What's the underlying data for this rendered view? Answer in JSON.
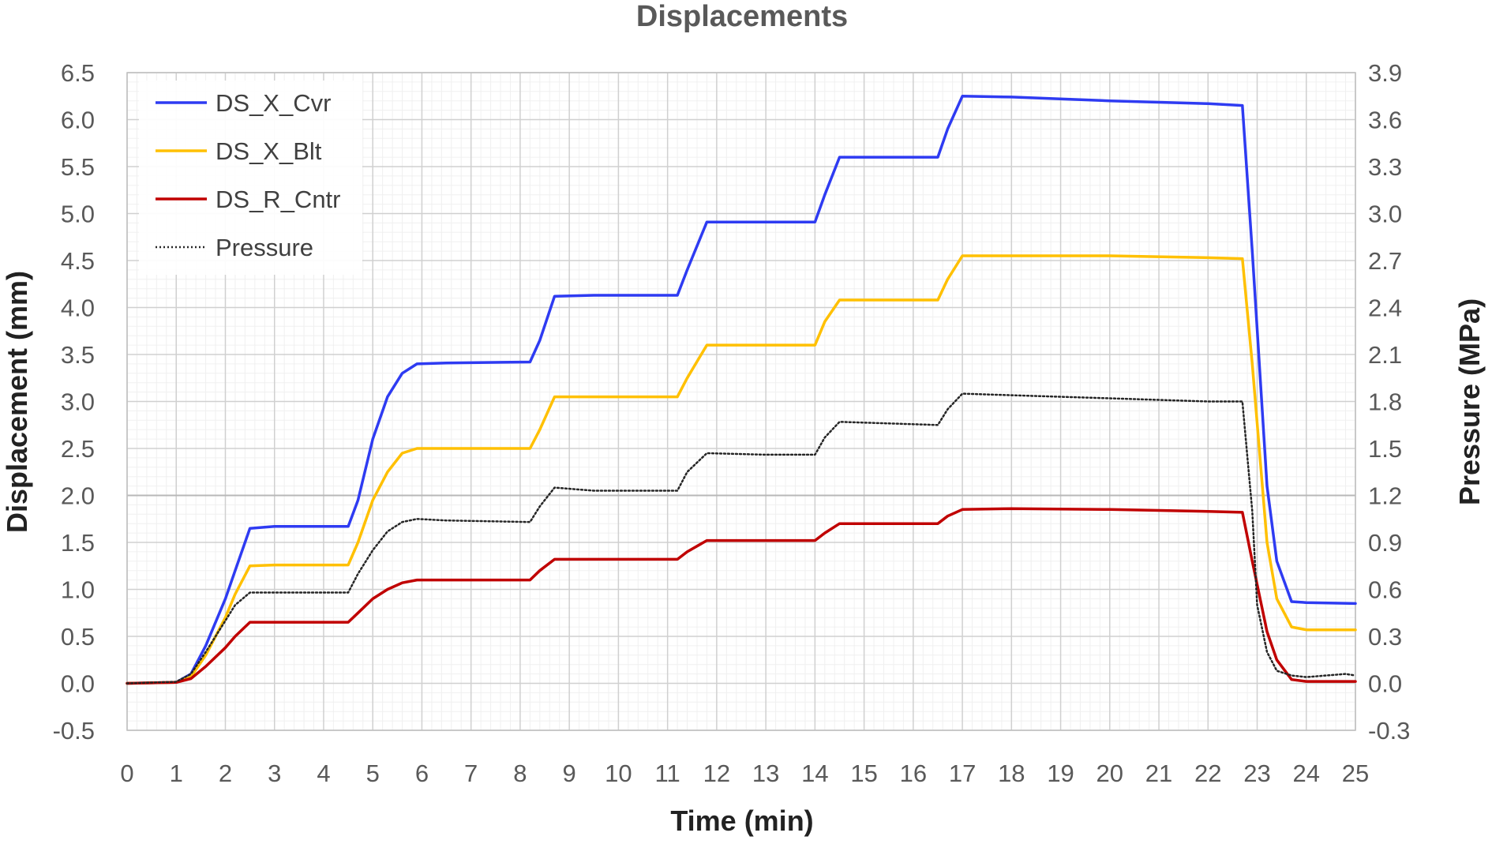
{
  "chart_data": {
    "type": "line",
    "title": "Displacements",
    "xlabel": "Time (min)",
    "ylabel": "Displacement (mm)",
    "y2label": "Pressure (MPa)",
    "xlim": [
      0,
      25
    ],
    "ylim": [
      -0.5,
      6.5
    ],
    "y2lim": [
      -0.3,
      3.9
    ],
    "x_ticks": [
      "0",
      "1",
      "2",
      "3",
      "4",
      "5",
      "6",
      "7",
      "8",
      "9",
      "10",
      "11",
      "12",
      "13",
      "14",
      "15",
      "16",
      "17",
      "18",
      "19",
      "20",
      "21",
      "22",
      "23",
      "24",
      "25"
    ],
    "y_ticks": [
      "-0.5",
      "0.0",
      "0.5",
      "1.0",
      "1.5",
      "2.0",
      "2.5",
      "3.0",
      "3.5",
      "4.0",
      "4.5",
      "5.0",
      "5.5",
      "6.0",
      "6.5"
    ],
    "y2_ticks": [
      "-0.3",
      "0.0",
      "0.3",
      "0.6",
      "0.9",
      "1.2",
      "1.5",
      "1.8",
      "2.1",
      "2.4",
      "2.7",
      "3.0",
      "3.3",
      "3.6",
      "3.9"
    ],
    "grid": true,
    "legend_position": "top-left",
    "series": [
      {
        "name": "DS_X_Cvr",
        "axis": "left",
        "color": "#2E3BF2",
        "style": "solid",
        "x": [
          0,
          1.0,
          1.3,
          1.6,
          2.0,
          2.2,
          2.5,
          3.0,
          4.5,
          4.7,
          5.0,
          5.3,
          5.6,
          5.9,
          6.5,
          8.2,
          8.4,
          8.7,
          9.5,
          11.2,
          11.4,
          11.8,
          13.0,
          14.0,
          14.2,
          14.5,
          15.5,
          16.5,
          16.7,
          17.0,
          18.0,
          20.0,
          22.0,
          22.7,
          22.9,
          23.2,
          23.4,
          23.7,
          24.0,
          25.0
        ],
        "y": [
          0,
          0.01,
          0.1,
          0.4,
          0.9,
          1.2,
          1.65,
          1.67,
          1.67,
          1.95,
          2.6,
          3.05,
          3.3,
          3.4,
          3.41,
          3.42,
          3.65,
          4.12,
          4.13,
          4.13,
          4.4,
          4.91,
          4.91,
          4.91,
          5.2,
          5.6,
          5.6,
          5.6,
          5.9,
          6.25,
          6.24,
          6.2,
          6.17,
          6.15,
          4.6,
          2.1,
          1.3,
          0.87,
          0.86,
          0.85
        ]
      },
      {
        "name": "DS_X_Blt",
        "axis": "left",
        "color": "#FFC000",
        "style": "solid",
        "x": [
          0,
          1.0,
          1.3,
          1.6,
          2.0,
          2.2,
          2.5,
          3.0,
          4.5,
          4.7,
          5.0,
          5.3,
          5.6,
          5.9,
          6.5,
          8.2,
          8.4,
          8.7,
          9.5,
          11.2,
          11.4,
          11.8,
          13.0,
          14.0,
          14.2,
          14.5,
          15.5,
          16.5,
          16.7,
          17.0,
          18.0,
          20.0,
          22.0,
          22.7,
          22.9,
          23.2,
          23.4,
          23.7,
          24.0,
          25.0
        ],
        "y": [
          0,
          0.01,
          0.07,
          0.3,
          0.7,
          0.95,
          1.25,
          1.26,
          1.26,
          1.5,
          1.95,
          2.25,
          2.45,
          2.5,
          2.5,
          2.5,
          2.7,
          3.05,
          3.05,
          3.05,
          3.25,
          3.6,
          3.6,
          3.6,
          3.85,
          4.08,
          4.08,
          4.08,
          4.3,
          4.55,
          4.55,
          4.55,
          4.53,
          4.52,
          3.4,
          1.5,
          0.9,
          0.6,
          0.57,
          0.57
        ]
      },
      {
        "name": "DS_R_Cntr",
        "axis": "left",
        "color": "#C00000",
        "style": "solid",
        "x": [
          0,
          1.0,
          1.3,
          1.6,
          2.0,
          2.2,
          2.5,
          3.0,
          4.5,
          4.7,
          5.0,
          5.3,
          5.6,
          5.9,
          6.5,
          8.2,
          8.4,
          8.7,
          9.5,
          11.2,
          11.4,
          11.8,
          13.0,
          14.0,
          14.2,
          14.5,
          15.5,
          16.5,
          16.7,
          17.0,
          18.0,
          20.0,
          22.0,
          22.7,
          22.9,
          23.2,
          23.4,
          23.7,
          24.0,
          25.0
        ],
        "y": [
          0,
          0.01,
          0.05,
          0.18,
          0.38,
          0.5,
          0.65,
          0.65,
          0.65,
          0.75,
          0.9,
          1.0,
          1.07,
          1.1,
          1.1,
          1.1,
          1.2,
          1.32,
          1.32,
          1.32,
          1.4,
          1.52,
          1.52,
          1.52,
          1.6,
          1.7,
          1.7,
          1.7,
          1.78,
          1.85,
          1.86,
          1.85,
          1.83,
          1.82,
          1.3,
          0.55,
          0.25,
          0.04,
          0.02,
          0.02
        ]
      },
      {
        "name": "Pressure",
        "axis": "right",
        "color": "#262626",
        "style": "dotted",
        "x": [
          0,
          1.0,
          1.3,
          1.6,
          2.0,
          2.2,
          2.5,
          3.0,
          4.5,
          4.7,
          5.0,
          5.3,
          5.6,
          5.9,
          6.5,
          8.2,
          8.4,
          8.7,
          9.5,
          11.2,
          11.4,
          11.8,
          13.0,
          14.0,
          14.2,
          14.5,
          15.5,
          16.5,
          16.7,
          17.0,
          18.0,
          20.0,
          22.0,
          22.7,
          22.9,
          23.0,
          23.2,
          23.4,
          23.7,
          24.0,
          24.8,
          25.0
        ],
        "y": [
          0,
          0.01,
          0.06,
          0.2,
          0.4,
          0.5,
          0.58,
          0.58,
          0.58,
          0.7,
          0.85,
          0.97,
          1.03,
          1.05,
          1.04,
          1.03,
          1.13,
          1.25,
          1.23,
          1.23,
          1.35,
          1.47,
          1.46,
          1.46,
          1.57,
          1.67,
          1.66,
          1.65,
          1.75,
          1.85,
          1.84,
          1.82,
          1.8,
          1.8,
          1.1,
          0.5,
          0.2,
          0.08,
          0.05,
          0.04,
          0.06,
          0.05
        ]
      }
    ]
  }
}
